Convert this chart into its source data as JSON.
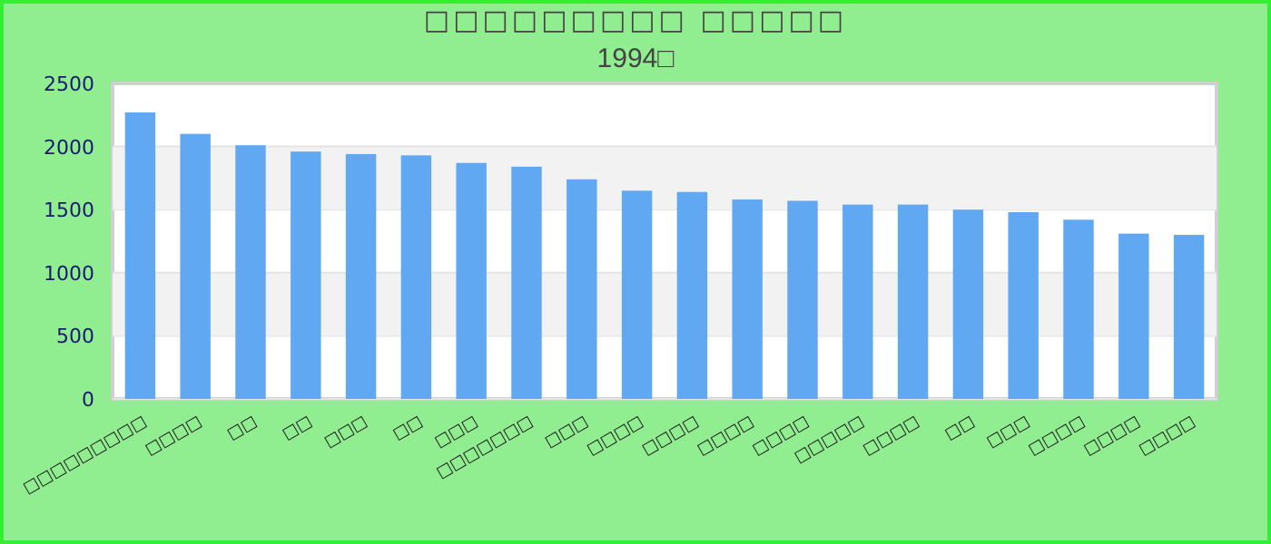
{
  "chart_data": {
    "type": "bar",
    "title": "□□□□□□□□□ □□□□□",
    "subtitle": "1994□",
    "categories": [
      "□□□□□□□□□",
      "□□□□",
      "□□",
      "□□",
      "□□□",
      "□□",
      "□□□",
      "□□□□□□□",
      "□□□",
      "□□□□",
      "□□□□",
      "□□□□",
      "□□□□",
      "□□□□□",
      "□□□□",
      "□□",
      "□□□",
      "□□□□",
      "□□□□",
      "□□□□"
    ],
    "values": [
      2270,
      2100,
      2010,
      1960,
      1940,
      1930,
      1870,
      1840,
      1740,
      1650,
      1640,
      1580,
      1570,
      1540,
      1540,
      1500,
      1480,
      1420,
      1310,
      1300
    ],
    "color": "#61a8f3",
    "ylim": [
      0,
      2500
    ],
    "yticks": [
      0,
      500,
      1000,
      1500,
      2000,
      2500
    ],
    "grid": "y"
  }
}
